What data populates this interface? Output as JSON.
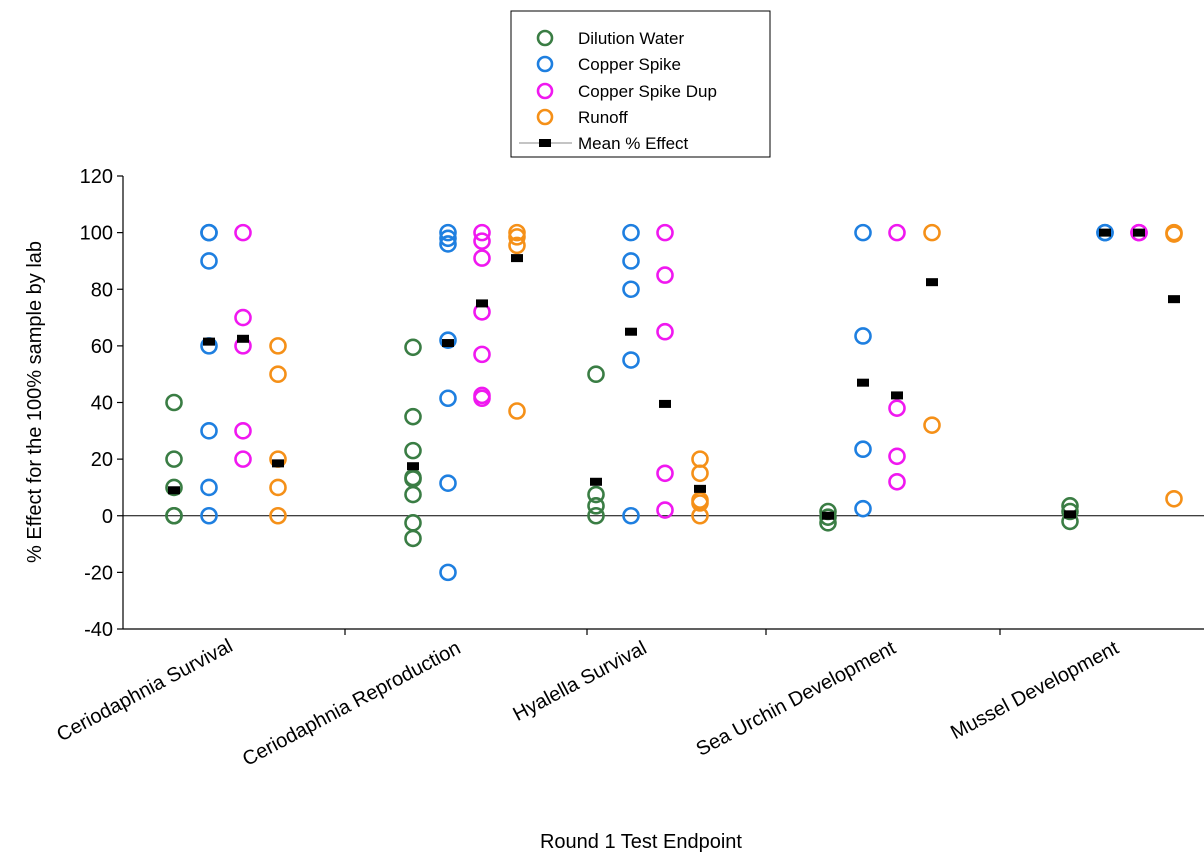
{
  "chart_data": {
    "type": "scatter",
    "title": "",
    "xlabel": "Round 1 Test Endpoint",
    "ylabel": "% Effect for the 100% sample by lab",
    "ylim": [
      -40,
      120
    ],
    "yticks": [
      -40,
      -20,
      0,
      20,
      40,
      60,
      80,
      100,
      120
    ],
    "grid": false,
    "legend_position": "top-center",
    "categories": [
      "Ceriodaphnia Survival",
      "Ceriodaphnia Reproduction",
      "Hyalella Survival",
      "Sea Urchin Development",
      "Mussel Development"
    ],
    "series": [
      {
        "name": "Dilution Water",
        "color": "#3a7d44",
        "marker": "open-circle",
        "points": [
          [
            [
              40,
              20,
              10,
              0,
              0
            ]
          ],
          [
            [
              59.5,
              35,
              23,
              13.5,
              13,
              7.5,
              -2.5,
              -8
            ]
          ],
          [
            [
              50,
              7.5,
              3.5,
              0
            ]
          ],
          [
            [
              1.5,
              -0.5,
              -2.5
            ]
          ],
          [
            [
              3.5,
              1.5,
              -2
            ]
          ]
        ]
      },
      {
        "name": "Copper Spike",
        "color": "#1e7fe0",
        "marker": "open-circle",
        "points": [
          [
            [
              100,
              100,
              90,
              60,
              30,
              10,
              0
            ]
          ],
          [
            [
              100,
              98,
              96,
              62,
              41.5,
              11.5,
              -20
            ]
          ],
          [
            [
              100,
              90,
              80,
              55,
              0
            ]
          ],
          [
            [
              100,
              63.5,
              23.5,
              2.5
            ]
          ],
          [
            [
              100,
              100
            ]
          ]
        ]
      },
      {
        "name": "Copper Spike Dup",
        "color": "#f018f0",
        "marker": "open-circle",
        "points": [
          [
            [
              100,
              70,
              60,
              30,
              20
            ]
          ],
          [
            [
              100,
              97,
              91,
              72,
              57,
              42.5,
              41.5
            ]
          ],
          [
            [
              100,
              85,
              65,
              15,
              2
            ]
          ],
          [
            [
              100,
              38,
              21,
              12
            ]
          ],
          [
            [
              100,
              100
            ]
          ]
        ]
      },
      {
        "name": "Runoff",
        "color": "#f59018",
        "marker": "open-circle",
        "points": [
          [
            [
              60,
              50,
              20,
              10,
              0
            ]
          ],
          [
            [
              100,
              98.5,
              95.5,
              37
            ]
          ],
          [
            [
              20,
              15,
              5.5,
              4.5,
              0
            ]
          ],
          [
            [
              100,
              32
            ]
          ],
          [
            [
              100,
              99.5,
              6
            ]
          ]
        ]
      }
    ],
    "mean_series": {
      "name": "Mean % Effect",
      "color": "#000000",
      "marker": "filled-square",
      "values": [
        [
          9,
          61.5,
          62.5,
          18.5
        ],
        [
          17.5,
          61,
          75,
          91
        ],
        [
          12,
          65,
          39.5,
          9.5
        ],
        [
          0,
          47,
          42.5,
          82.5
        ],
        [
          0.5,
          100,
          100,
          76.5
        ]
      ]
    }
  }
}
